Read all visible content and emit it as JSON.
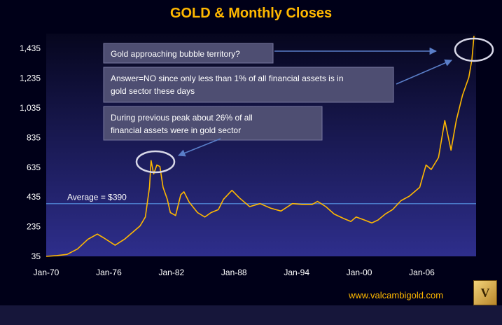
{
  "chart_data": {
    "type": "line",
    "title": "GOLD & Monthly Closes",
    "xlabel": "",
    "ylabel": "",
    "x_ticks": [
      "Jan-70",
      "Jan-76",
      "Jan-82",
      "Jan-88",
      "Jan-94",
      "Jan-00",
      "Jan-06"
    ],
    "y_ticks": [
      35,
      235,
      435,
      635,
      835,
      1035,
      1235,
      1435
    ],
    "y_tick_labels": [
      "35",
      "235",
      "435",
      "635",
      "835",
      "1,035",
      "1,235",
      "1,435"
    ],
    "xlim": [
      1970,
      2011
    ],
    "ylim": [
      35,
      1535
    ],
    "grid": false,
    "average": {
      "value": 390,
      "label": "Average = $390"
    },
    "series": [
      {
        "color": "#ffb800",
        "points": [
          [
            1970.0,
            35
          ],
          [
            1971.0,
            40
          ],
          [
            1972.0,
            48
          ],
          [
            1973.0,
            85
          ],
          [
            1974.0,
            150
          ],
          [
            1974.9,
            185
          ],
          [
            1975.5,
            160
          ],
          [
            1976.6,
            110
          ],
          [
            1977.5,
            150
          ],
          [
            1978.5,
            210
          ],
          [
            1979.0,
            240
          ],
          [
            1979.5,
            300
          ],
          [
            1979.9,
            500
          ],
          [
            1980.05,
            680
          ],
          [
            1980.3,
            590
          ],
          [
            1980.6,
            650
          ],
          [
            1980.9,
            640
          ],
          [
            1981.2,
            500
          ],
          [
            1981.6,
            420
          ],
          [
            1981.9,
            330
          ],
          [
            1982.4,
            310
          ],
          [
            1982.9,
            450
          ],
          [
            1983.2,
            470
          ],
          [
            1983.7,
            400
          ],
          [
            1984.5,
            330
          ],
          [
            1985.2,
            300
          ],
          [
            1985.8,
            330
          ],
          [
            1986.5,
            350
          ],
          [
            1987.0,
            420
          ],
          [
            1987.8,
            480
          ],
          [
            1988.5,
            430
          ],
          [
            1989.5,
            370
          ],
          [
            1990.5,
            390
          ],
          [
            1991.5,
            360
          ],
          [
            1992.5,
            340
          ],
          [
            1993.6,
            390
          ],
          [
            1994.5,
            385
          ],
          [
            1995.5,
            385
          ],
          [
            1996.0,
            405
          ],
          [
            1996.8,
            370
          ],
          [
            1997.6,
            320
          ],
          [
            1998.5,
            290
          ],
          [
            1999.2,
            270
          ],
          [
            1999.7,
            300
          ],
          [
            2000.5,
            280
          ],
          [
            2001.2,
            260
          ],
          [
            2001.8,
            280
          ],
          [
            2002.5,
            320
          ],
          [
            2003.2,
            350
          ],
          [
            2004.0,
            410
          ],
          [
            2004.8,
            440
          ],
          [
            2005.8,
            500
          ],
          [
            2006.4,
            650
          ],
          [
            2006.9,
            620
          ],
          [
            2007.6,
            700
          ],
          [
            2008.2,
            950
          ],
          [
            2008.8,
            750
          ],
          [
            2009.3,
            950
          ],
          [
            2009.9,
            1120
          ],
          [
            2010.5,
            1240
          ],
          [
            2010.8,
            1360
          ],
          [
            2011.0,
            1520
          ]
        ]
      }
    ],
    "annotations": [
      {
        "text": "Gold approaching bubble territory?"
      },
      {
        "text": "Answer=NO since only less than 1% of all  financial assets is in gold sector these days"
      },
      {
        "text": "During previous  peak about 26% of all financial assets were in gold sector"
      }
    ]
  },
  "footer": {
    "website": "www.valcambigold.com",
    "logo_letter": "V"
  },
  "colors": {
    "plot_top": "#06061e",
    "plot_bottom": "#2e2e8c",
    "line": "#ffb800",
    "average_line": "#4a78c8",
    "annotation_box": "#4e4e72"
  }
}
